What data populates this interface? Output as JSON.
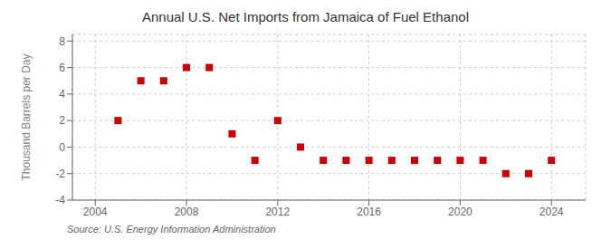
{
  "chart_data": {
    "type": "scatter",
    "title": "Annual U.S. Net Imports from Jamaica of Fuel Ethanol",
    "ylabel": "Thousand Barrels per Day",
    "annotations": [
      "Source: U.S. Energy Information Administration"
    ],
    "x": [
      2005,
      2006,
      2007,
      2008,
      2009,
      2010,
      2011,
      2012,
      2013,
      2014,
      2015,
      2016,
      2017,
      2018,
      2019,
      2020,
      2021,
      2022,
      2023,
      2024
    ],
    "values": [
      2,
      5,
      5,
      6,
      6,
      1,
      -1,
      2,
      0,
      -1,
      -1,
      -1,
      -1,
      -1,
      -1,
      -1,
      -1,
      -2,
      -2,
      -1
    ],
    "color": "#cc0000",
    "marker": "square",
    "xlim": [
      2003.0,
      2025.5
    ],
    "xticks": [
      2004,
      2008,
      2012,
      2016,
      2020,
      2024
    ],
    "ylim": [
      -4,
      8.5
    ],
    "yticks": [
      -4,
      -2,
      0,
      2,
      4,
      6,
      8
    ],
    "grid": true
  }
}
